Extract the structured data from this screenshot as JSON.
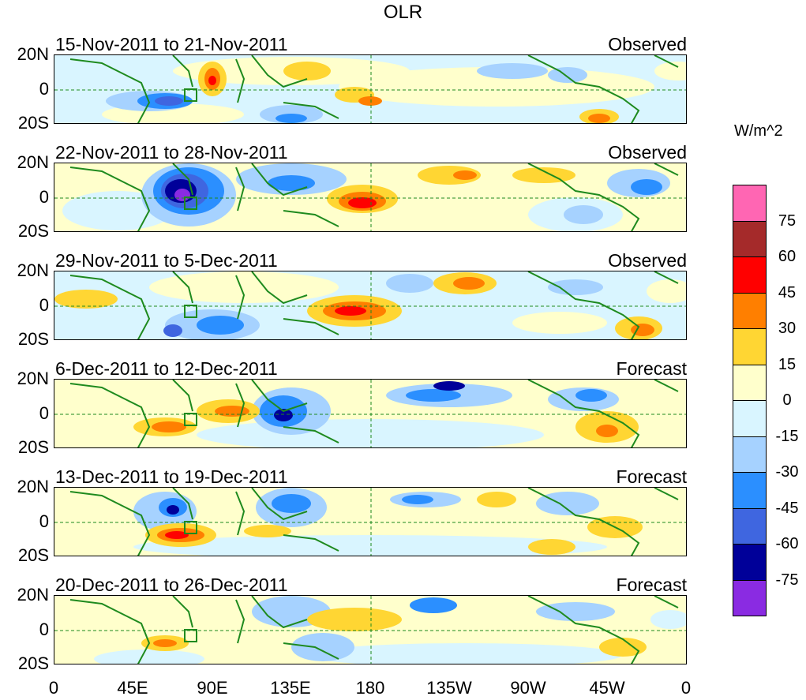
{
  "title": "OLR",
  "units": "W/m^2",
  "lat_labels": [
    "20N",
    "0",
    "20S"
  ],
  "lon_labels": [
    "0",
    "45E",
    "90E",
    "135E",
    "180",
    "135W",
    "90W",
    "45W",
    "0"
  ],
  "panels": [
    {
      "period": "15-Nov-2011 to 21-Nov-2011",
      "kind": "Observed"
    },
    {
      "period": "22-Nov-2011 to 28-Nov-2011",
      "kind": "Observed"
    },
    {
      "period": "29-Nov-2011 to 5-Dec-2011",
      "kind": "Observed"
    },
    {
      "period": "6-Dec-2011 to 12-Dec-2011",
      "kind": "Forecast"
    },
    {
      "period": "13-Dec-2011 to 19-Dec-2011",
      "kind": "Forecast"
    },
    {
      "period": "20-Dec-2011 to 26-Dec-2011",
      "kind": "Forecast"
    }
  ],
  "colorbar": {
    "levels": [
      "75",
      "60",
      "45",
      "30",
      "15",
      "0",
      "-15",
      "-30",
      "-45",
      "-60",
      "-75"
    ],
    "colors": [
      "#ff66b3",
      "#a52a2a",
      "#ff0000",
      "#ff7f00",
      "#ffd633",
      "#ffffcc",
      "#d9f5ff",
      "#a6d2ff",
      "#2b8fff",
      "#3f66e0",
      "#000099",
      "#8a2be2"
    ]
  },
  "colors": {
    "coast": "#1e8a1e",
    "frame": "#000000"
  }
}
